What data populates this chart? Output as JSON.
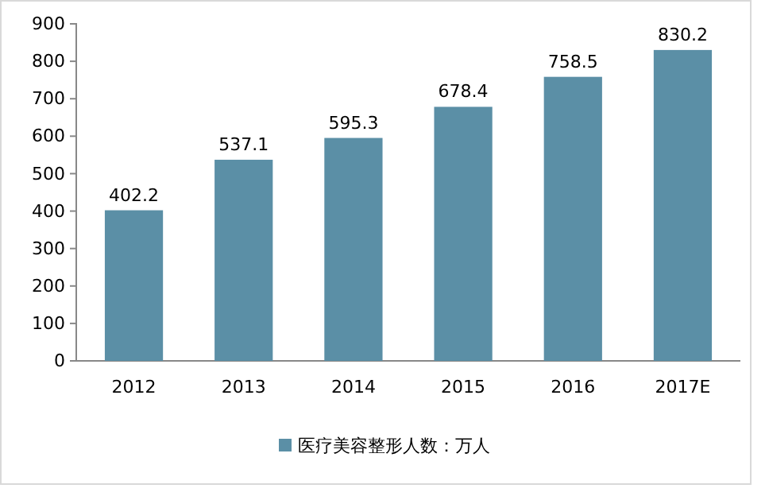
{
  "chart_data": {
    "type": "bar",
    "categories": [
      "2012",
      "2013",
      "2014",
      "2015",
      "2016",
      "2017E"
    ],
    "series": [
      {
        "name": "医疗美容整形人数：万人",
        "color": "#5b8fa6",
        "values": [
          402.2,
          537.1,
          595.3,
          678.4,
          758.5,
          830.2
        ]
      }
    ],
    "ylim": [
      0,
      900
    ],
    "yticks": [
      0,
      100,
      200,
      300,
      400,
      500,
      600,
      700,
      800,
      900
    ],
    "data_labels": true,
    "legend": "bottom",
    "grid": false
  }
}
